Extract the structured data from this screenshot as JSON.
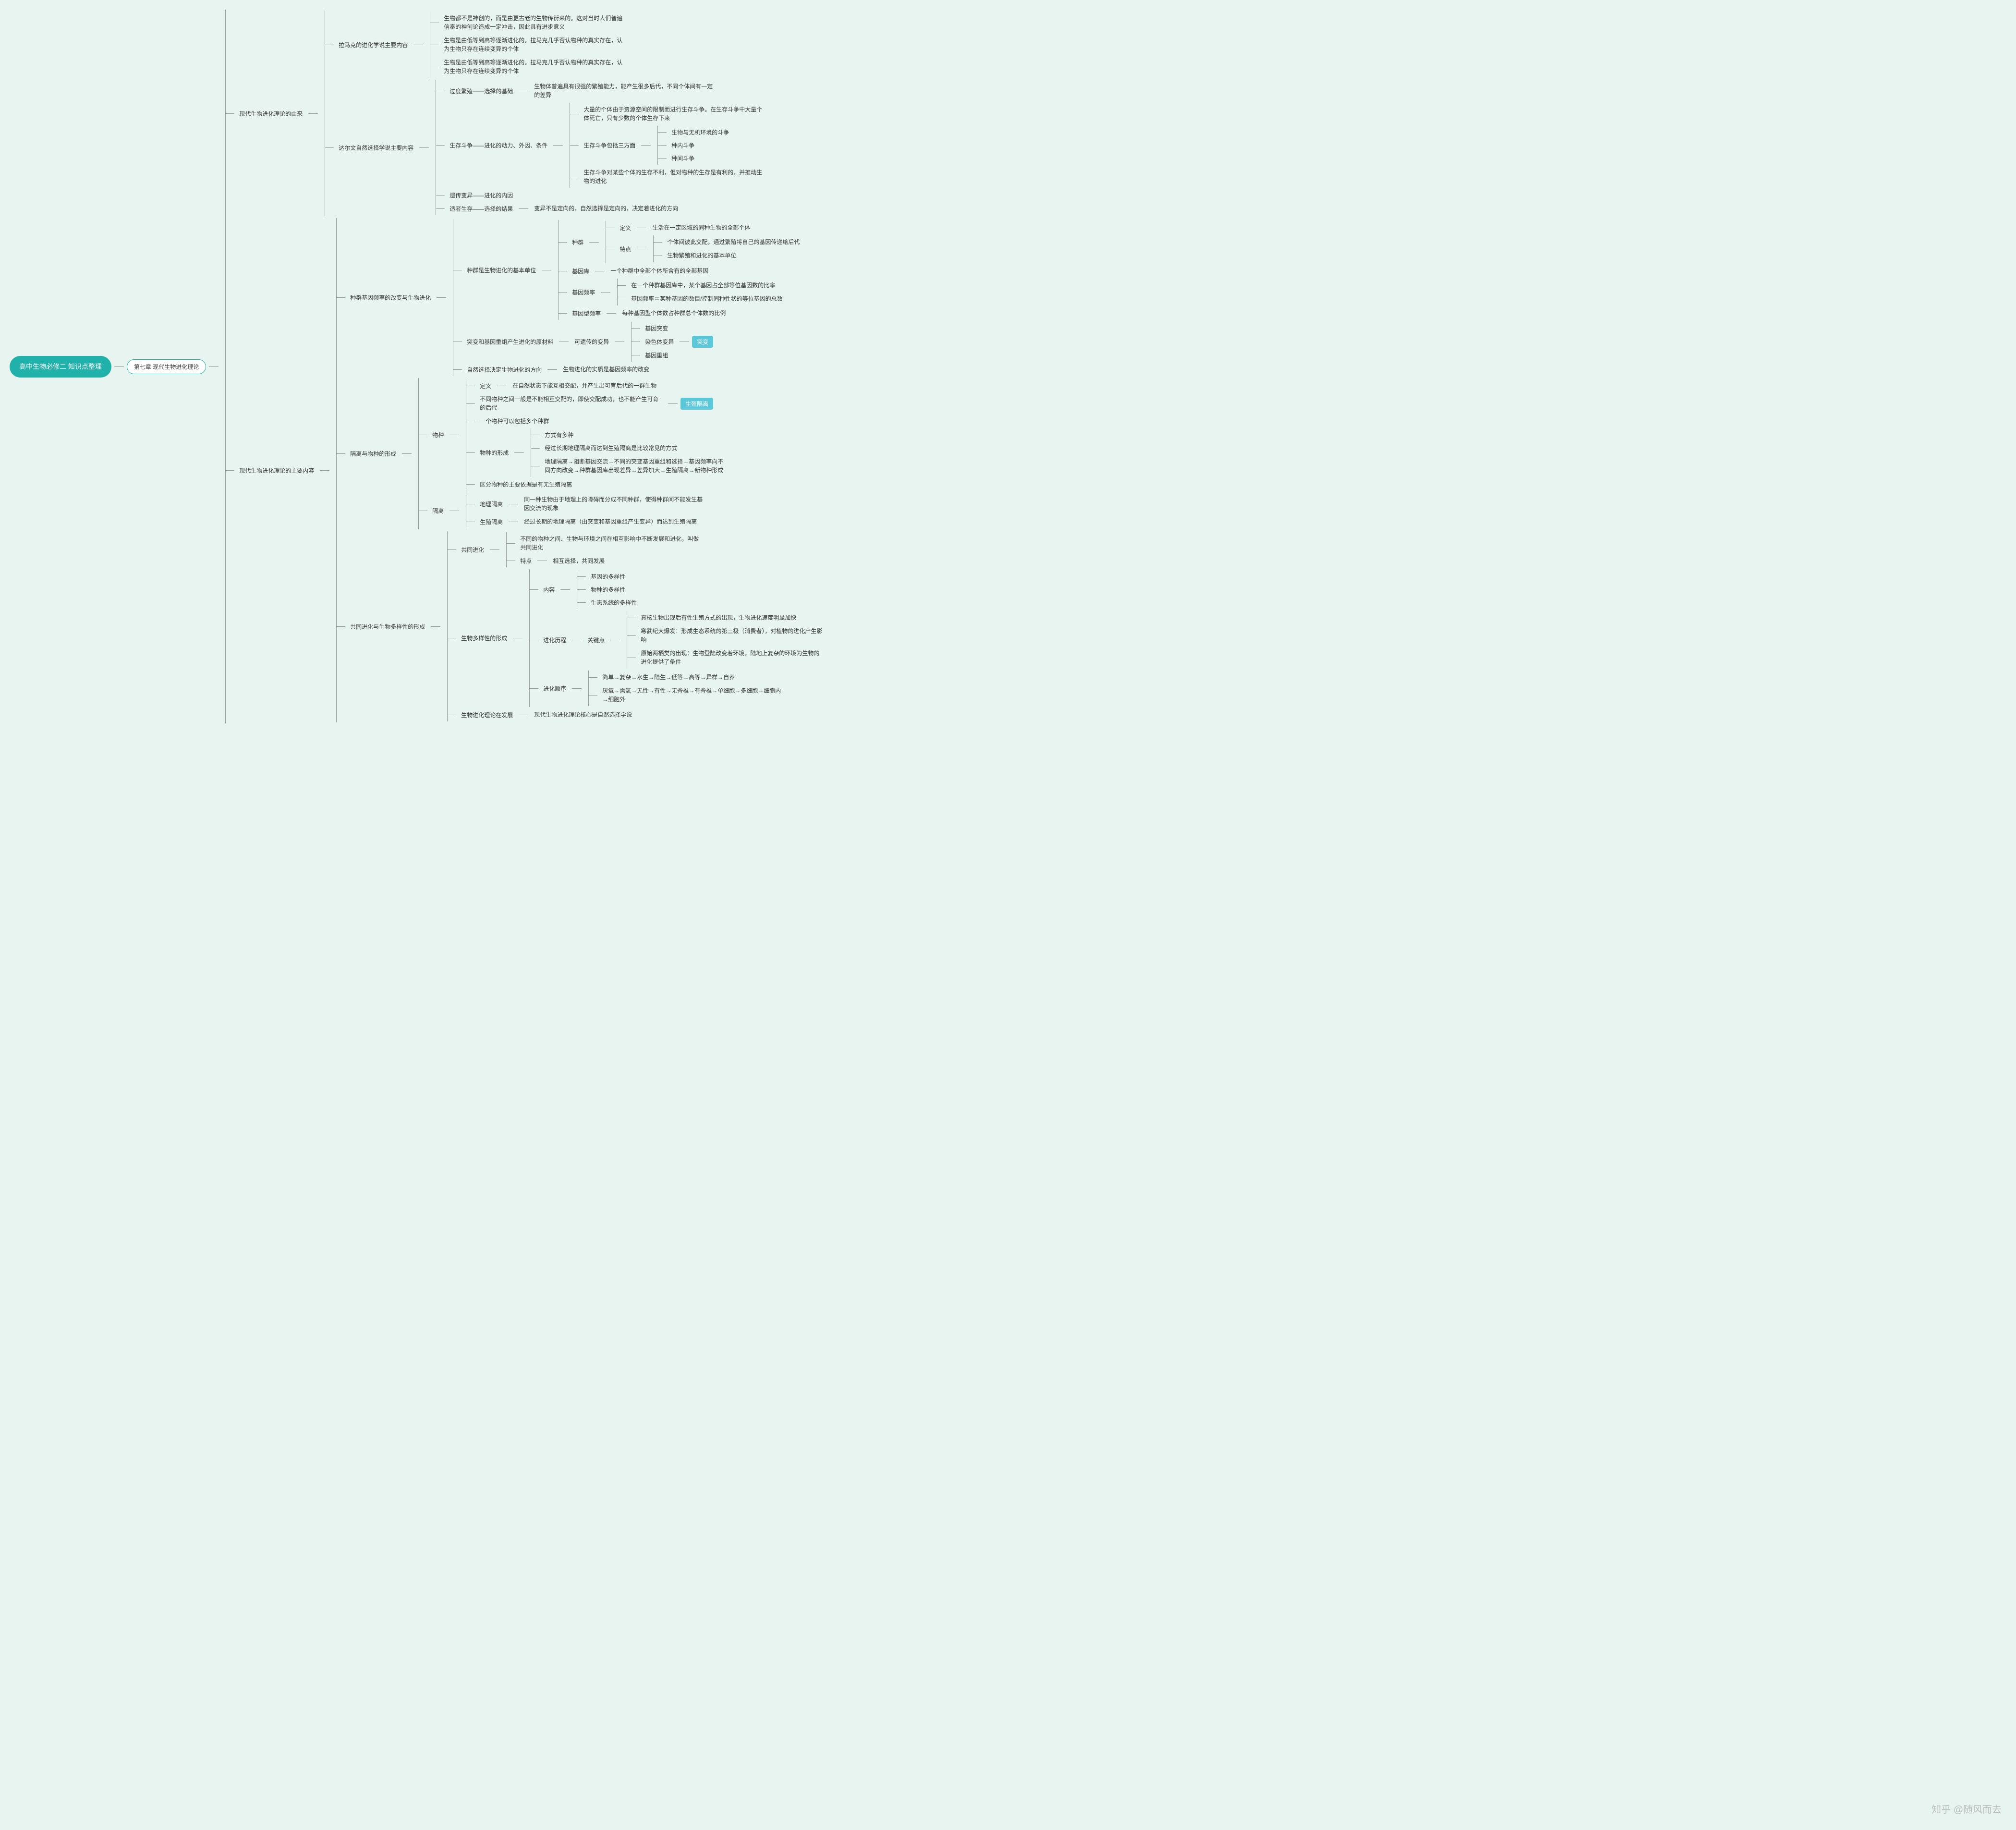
{
  "colors": {
    "bg": "#e8f4f0",
    "accent": "#20b2aa",
    "badge": "#5ac8d8",
    "line": "#999999",
    "text": "#333333"
  },
  "root": "高中生物必修二\n知识点整理",
  "chapter": "第七章 现代生物进化理论",
  "watermark": "知乎 @随风而去",
  "s1": {
    "title": "现代生物进化理论的由来",
    "lamarck": {
      "title": "拉马克的进化学说主要内容",
      "i1": "生物都不是神创的，而是由更古老的生物传衍来的。这对当时人们普遍信奉的神创论造成一定冲击，因此具有进步意义",
      "i2": "生物是由低等到高等逐渐进化的。拉马克几乎否认物种的真实存在，认为生物只存在连续变异的个体",
      "i3": "生物是由低等到高等逐渐进化的。拉马克几乎否认物种的真实存在，认为生物只存在连续变异的个体"
    },
    "darwin": {
      "title": "达尔文自然选择学说主要内容",
      "d1": {
        "t": "过度繁殖——选择的基础",
        "c": "生物体普遍具有很强的繁殖能力，能产生很多后代，不同个体间有一定的差异"
      },
      "d2": {
        "t": "生存斗争——进化的动力、外因、条件",
        "c1": "大量的个体由于资源空间的限制而进行生存斗争。在生存斗争中大量个体死亡，只有少数的个体生存下来",
        "c2t": "生存斗争包括三方面",
        "c2a": "生物与无机环境的斗争",
        "c2b": "种内斗争",
        "c2c": "种间斗争",
        "c3": "生存斗争对某些个体的生存不利，但对物种的生存是有利的，并推动生物的进化"
      },
      "d3": "遗传变异——进化的内因",
      "d4": {
        "t": "适者生存——选择的结果",
        "c": "变异不是定向的，自然选择是定向的，决定着进化的方向"
      }
    }
  },
  "s2": {
    "title": "现代生物进化理论的主要内容",
    "p1": {
      "title": "种群基因频率的改变与生物进化",
      "unit": {
        "t": "种群是生物进化的基本单位",
        "pop": {
          "t": "种群",
          "def": {
            "t": "定义",
            "c": "生活在一定区域的同种生物的全部个体"
          },
          "feat": {
            "t": "特点",
            "c1": "个体间彼此交配，通过繁殖将自己的基因传递给后代",
            "c2": "生物繁殖和进化的基本单位"
          }
        },
        "pool": {
          "t": "基因库",
          "c": "一个种群中全部个体所含有的全部基因"
        },
        "freq": {
          "t": "基因频率",
          "c1": "在一个种群基因库中，某个基因占全部等位基因数的比率",
          "c2": "基因频率＝某种基因的数目/控制同种性状的等位基因的总数"
        },
        "geno": {
          "t": "基因型频率",
          "c": "每种基因型个体数占种群总个体数的比例"
        }
      },
      "mut": {
        "t": "突变和基因重组产生进化的原材料",
        "her": "可遗传的变异",
        "a": "基因突变",
        "b": "染色体变异",
        "c": "基因重组",
        "badge": "突变"
      },
      "sel": {
        "t": "自然选择决定生物进化的方向",
        "c": "生物进化的实质是基因频率的改变"
      }
    },
    "p2": {
      "title": "隔离与物种的形成",
      "species": {
        "t": "物种",
        "def": {
          "t": "定义",
          "c": "在自然状态下能互相交配，并产生出可育后代的一群生物"
        },
        "iso": {
          "t": "不同物种之间一般是不能相互交配的，即使交配成功，也不能产生可育的后代",
          "badge": "生殖隔离"
        },
        "multi": "一个物种可以包括多个种群",
        "form": {
          "t": "物种的形成",
          "c1": "方式有多种",
          "c2": "经过长期地理隔离而达到生殖隔离是比较常见的方式",
          "c3": "地理隔离→阻断基因交流→不同的突变基因重组和选择→基因频率向不同方向改变→种群基因库出现差异→差异加大→生殖隔离→新物种形成"
        },
        "dist": "区分物种的主要依据是有无生殖隔离"
      },
      "isolation": {
        "t": "隔离",
        "geo": {
          "t": "地理隔离",
          "c": "同一种生物由于地理上的障碍而分成不同种群，使得种群间不能发生基因交流的现象"
        },
        "rep": {
          "t": "生殖隔离",
          "c": "经过长期的地理隔离（由突变和基因重组产生变异）而达到生殖隔离"
        }
      }
    },
    "p3": {
      "title": "共同进化与生物多样性的形成",
      "coev": {
        "t": "共同进化",
        "c1": "不同的物种之间、生物与环境之间在相互影响中不断发展和进化，叫做共同进化",
        "feat": {
          "t": "特点",
          "c": "相互选择，共同发展"
        }
      },
      "div": {
        "t": "生物多样性的形成",
        "cont": {
          "t": "内容",
          "a": "基因的多样性",
          "b": "物种的多样性",
          "c": "生态系统的多样性"
        },
        "hist": {
          "t": "进化历程",
          "key": {
            "t": "关键点",
            "a": "真核生物出现后有性生殖方式的出现，生物进化速度明显加快",
            "b": "寒武纪大爆发：形成生态系统的第三极（消费者），对植物的进化产生影响",
            "c": "原始两栖类的出现：生物登陆改变着环境，陆地上复杂的环境为生物的进化提供了条件"
          }
        },
        "order": {
          "t": "进化顺序",
          "a": "简单→复杂→水生→陆生→低等→高等→异样→自养",
          "b": "厌氧→需氧→无性→有性→无脊椎→有脊椎→单细胞→多细胞→细胞内→细胞外"
        }
      },
      "dev": {
        "t": "生物进化理论在发展",
        "c": "现代生物进化理论核心是自然选择学说"
      }
    }
  }
}
